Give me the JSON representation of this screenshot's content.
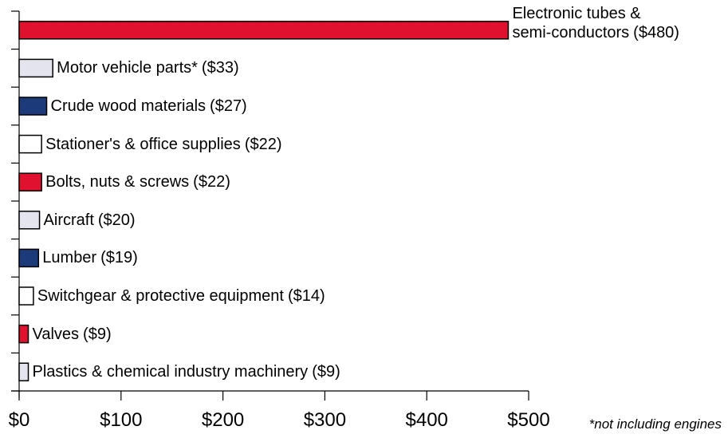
{
  "chart_data": {
    "type": "hbar",
    "categories": [
      "Electronic tubes & semi-conductors",
      "Motor vehicle parts*",
      "Crude wood materials",
      "Stationer's & office supplies",
      "Bolts, nuts & screws",
      "Aircraft",
      "Lumber",
      "Switchgear & protective equipment",
      "Valves",
      "Plastics & chemical industry machinery"
    ],
    "values": [
      480,
      33,
      27,
      22,
      22,
      20,
      19,
      14,
      9,
      9
    ],
    "value_labels": [
      "($480)",
      "($33)",
      "($27)",
      "($22)",
      "($22)",
      "($20)",
      "($19)",
      "($14)",
      "($9)",
      "($9)"
    ],
    "colors": [
      "#e0102f",
      "#e4e4ee",
      "#1c3a7a",
      "#ffffff",
      "#e0102f",
      "#e4e4ee",
      "#1c3a7a",
      "#ffffff",
      "#e0102f",
      "#e4e4ee"
    ],
    "xlim": [
      0,
      500
    ],
    "xticks": [
      {
        "value": 0,
        "label": "$0"
      },
      {
        "value": 100,
        "label": "$100"
      },
      {
        "value": 200,
        "label": "$200"
      },
      {
        "value": 300,
        "label": "$300"
      },
      {
        "value": 400,
        "label": "$400"
      },
      {
        "value": 500,
        "label": "$500"
      }
    ],
    "note": "*not including engines"
  }
}
